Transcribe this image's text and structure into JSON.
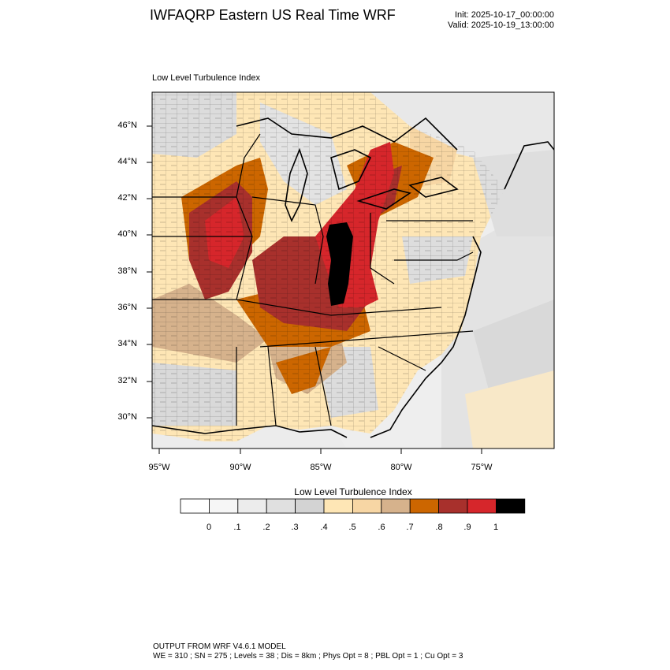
{
  "header": {
    "title": "IWFAQRP Eastern US Real Time WRF",
    "init": "Init: 2025-10-17_00:00:00",
    "valid": "Valid: 2025-10-19_13:00:00"
  },
  "map": {
    "field_label": "Low Level Turbulence Index",
    "lat_labels": [
      "46°N",
      "44°N",
      "42°N",
      "40°N",
      "38°N",
      "36°N",
      "34°N",
      "32°N",
      "30°N"
    ],
    "lon_labels": [
      "95°W",
      "90°W",
      "85°W",
      "80°W",
      "75°W"
    ]
  },
  "colorbar": {
    "title": "Low Level Turbulence Index",
    "tick_labels": [
      "0",
      ".1",
      ".2",
      ".3",
      ".4",
      ".5",
      ".6",
      ".7",
      ".8",
      ".9",
      "1"
    ],
    "colors": [
      "#ffffff",
      "#f6f6f6",
      "#ececec",
      "#e0e0e0",
      "#d3d3d3",
      "#fee6b5",
      "#f7d6a4",
      "#d6b28c",
      "#cc6600",
      "#a8302c",
      "#d6262b",
      "#000000"
    ]
  },
  "footer": {
    "line1": "OUTPUT FROM WRF V4.6.1 MODEL",
    "line2": "WE = 310 ; SN = 275 ; Levels = 38 ; Dis = 8km ; Phys Opt = 8 ; PBL Opt = 1 ; Cu Opt = 3"
  }
}
